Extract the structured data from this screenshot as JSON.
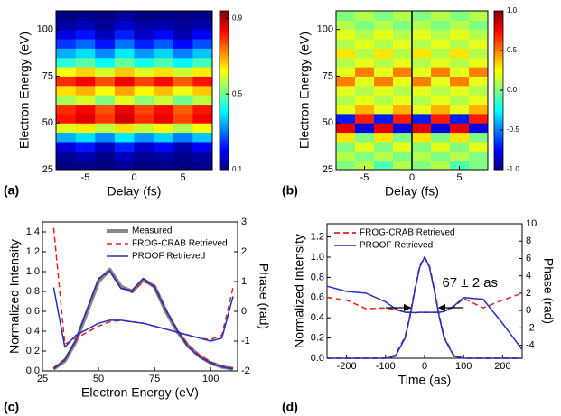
{
  "chart_data": [
    {
      "type": "heatmap",
      "panel_label": "(a)",
      "xlabel": "Delay (fs)",
      "ylabel": "Electron Energy (eV)",
      "xlim": [
        -8,
        8
      ],
      "ylim": [
        25,
        110
      ],
      "xticks": [
        -5,
        0,
        5
      ],
      "yticks": [
        25,
        50,
        75,
        100
      ],
      "colormap": "jet",
      "zlim": [
        0.1,
        0.94
      ],
      "colorbar_ticks": [
        0.1,
        0.5,
        0.9
      ],
      "x": [
        -7,
        -5,
        -3,
        -1,
        1,
        3,
        5,
        7
      ],
      "y": [
        27.5,
        32.5,
        37.5,
        42.5,
        47.5,
        52.5,
        57.5,
        62.5,
        67.5,
        72.5,
        77.5,
        82.5,
        87.5,
        92.5,
        97.5,
        102.5,
        107.5
      ],
      "z": [
        [
          0.1,
          0.11,
          0.1,
          0.12,
          0.1,
          0.11,
          0.1,
          0.11
        ],
        [
          0.12,
          0.14,
          0.11,
          0.15,
          0.12,
          0.13,
          0.11,
          0.13
        ],
        [
          0.18,
          0.22,
          0.15,
          0.23,
          0.16,
          0.21,
          0.14,
          0.2
        ],
        [
          0.35,
          0.39,
          0.32,
          0.4,
          0.33,
          0.38,
          0.31,
          0.37
        ],
        [
          0.6,
          0.64,
          0.57,
          0.65,
          0.58,
          0.63,
          0.56,
          0.62
        ],
        [
          0.82,
          0.86,
          0.79,
          0.87,
          0.8,
          0.85,
          0.78,
          0.84
        ],
        [
          0.8,
          0.84,
          0.77,
          0.85,
          0.78,
          0.83,
          0.76,
          0.82
        ],
        [
          0.55,
          0.59,
          0.52,
          0.6,
          0.53,
          0.58,
          0.51,
          0.57
        ],
        [
          0.65,
          0.69,
          0.62,
          0.7,
          0.63,
          0.68,
          0.61,
          0.67
        ],
        [
          0.8,
          0.84,
          0.77,
          0.85,
          0.78,
          0.83,
          0.76,
          0.82
        ],
        [
          0.62,
          0.66,
          0.59,
          0.67,
          0.6,
          0.65,
          0.58,
          0.64
        ],
        [
          0.45,
          0.49,
          0.42,
          0.5,
          0.43,
          0.48,
          0.41,
          0.47
        ],
        [
          0.35,
          0.39,
          0.32,
          0.4,
          0.33,
          0.38,
          0.31,
          0.37
        ],
        [
          0.25,
          0.29,
          0.22,
          0.3,
          0.23,
          0.28,
          0.21,
          0.27
        ],
        [
          0.18,
          0.22,
          0.15,
          0.23,
          0.16,
          0.21,
          0.14,
          0.2
        ],
        [
          0.13,
          0.15,
          0.12,
          0.16,
          0.13,
          0.14,
          0.12,
          0.14
        ],
        [
          0.1,
          0.11,
          0.1,
          0.12,
          0.1,
          0.11,
          0.1,
          0.11
        ]
      ]
    },
    {
      "type": "heatmap",
      "panel_label": "(b)",
      "xlabel": "Delay (fs)",
      "ylabel": "Electron Energy (eV)",
      "xlim": [
        -8,
        8
      ],
      "ylim": [
        25,
        110
      ],
      "xticks": [
        -5,
        0,
        5
      ],
      "yticks": [
        25,
        50,
        75,
        100
      ],
      "colormap": "jet",
      "zlim": [
        -1,
        1
      ],
      "colorbar_ticks": [
        {
          "value": -1,
          "label": "-1.0"
        },
        {
          "value": -0.5,
          "label": "-0.5"
        },
        {
          "value": 0,
          "label": "0.0"
        },
        {
          "value": 0.5,
          "label": "0.5"
        },
        {
          "value": 1,
          "label": "1.0"
        }
      ],
      "x": [
        -7,
        -5,
        -3,
        -1,
        1,
        3,
        5,
        7
      ],
      "y": [
        27.5,
        32.5,
        37.5,
        42.5,
        47.5,
        52.5,
        57.5,
        62.5,
        67.5,
        72.5,
        77.5,
        82.5,
        87.5,
        92.5,
        97.5,
        102.5,
        107.5
      ],
      "z": [
        [
          0,
          0.1,
          -0.1,
          0.1,
          0,
          0.1,
          -0.1,
          0
        ],
        [
          0.1,
          0,
          0.1,
          0,
          0.1,
          0,
          0.1,
          0
        ],
        [
          0,
          0.2,
          0,
          0.2,
          0,
          0.2,
          0,
          0.2
        ],
        [
          0.3,
          0,
          0.3,
          0,
          0.3,
          0,
          0.3,
          0
        ],
        [
          0.8,
          -0.8,
          0.8,
          -0.8,
          0.8,
          -0.8,
          0.8,
          -0.8
        ],
        [
          -0.7,
          0.7,
          -0.7,
          0.7,
          -0.7,
          0.7,
          -0.7,
          0.7
        ],
        [
          0.2,
          0.4,
          0.2,
          0.4,
          0.2,
          0.4,
          0.2,
          0.4
        ],
        [
          0.1,
          0.2,
          0.1,
          0.2,
          0.1,
          0.2,
          0.1,
          0.2
        ],
        [
          0.2,
          0.1,
          0.2,
          0.1,
          0.2,
          0.1,
          0.2,
          0.1
        ],
        [
          0.5,
          0.2,
          0.5,
          0.2,
          0.5,
          0.2,
          0.5,
          0.2
        ],
        [
          0.2,
          0.5,
          0.2,
          0.5,
          0.2,
          0.5,
          0.2,
          0.5
        ],
        [
          0.1,
          0.2,
          0.1,
          0.2,
          0.1,
          0.2,
          0.1,
          0.2
        ],
        [
          0.3,
          0.1,
          0.3,
          0.1,
          0.3,
          0.1,
          0.3,
          0.1
        ],
        [
          0.1,
          0.2,
          0.1,
          0.2,
          0.1,
          0.2,
          0.1,
          0.2
        ],
        [
          0.2,
          0.1,
          0.2,
          0.1,
          0.2,
          0.1,
          0.2,
          0.1
        ],
        [
          0.1,
          0,
          0.1,
          0,
          0.1,
          0,
          0.1,
          0
        ],
        [
          0,
          0.1,
          0,
          0.1,
          0,
          0.1,
          0,
          0.1
        ]
      ]
    },
    {
      "type": "line",
      "panel_label": "(c)",
      "xlabel": "Electron Energy (eV)",
      "ylabel": "Normalized Intensity",
      "y2label": "Phase (rad)",
      "xlim": [
        25,
        112
      ],
      "ylim": [
        0,
        1.5
      ],
      "y2lim": [
        -2,
        3
      ],
      "xticks": [
        25,
        50,
        75,
        100
      ],
      "yticks": [
        {
          "value": 0,
          "label": "0.0"
        },
        {
          "value": 0.2,
          "label": "0.2"
        },
        {
          "value": 0.4,
          "label": "0.4"
        },
        {
          "value": 0.6,
          "label": "0.6"
        },
        {
          "value": 0.8,
          "label": "0.8"
        },
        {
          "value": 1,
          "label": "1.0"
        },
        {
          "value": 1.2,
          "label": "1.2"
        },
        {
          "value": 1.4,
          "label": "1.4"
        }
      ],
      "y2ticks": [
        -2,
        -1,
        0,
        1,
        2,
        3
      ],
      "legend": "upper right",
      "x": [
        30,
        35,
        40,
        45,
        50,
        55,
        60,
        65,
        70,
        75,
        80,
        85,
        90,
        95,
        100,
        105,
        110
      ],
      "series": [
        {
          "name": "Measured",
          "color": "#888888",
          "width": 4,
          "dash": "none",
          "values": [
            0.02,
            0.1,
            0.3,
            0.6,
            0.9,
            1.02,
            0.85,
            0.8,
            0.92,
            0.85,
            0.6,
            0.4,
            0.25,
            0.15,
            0.08,
            0.04,
            0.02
          ]
        },
        {
          "name": "FROG-CRAB Retrieved",
          "color": "#e02020",
          "width": 1.5,
          "dash": "6,4",
          "values": [
            0.03,
            0.12,
            0.32,
            0.62,
            0.92,
            1.0,
            0.84,
            0.79,
            0.9,
            0.86,
            0.62,
            0.42,
            0.26,
            0.16,
            0.09,
            0.05,
            0.03
          ]
        },
        {
          "name": "PROOF Retrieved",
          "color": "#2030c0",
          "width": 1.5,
          "dash": "none",
          "values": [
            0.02,
            0.11,
            0.31,
            0.63,
            0.93,
            1.01,
            0.83,
            0.81,
            0.93,
            0.84,
            0.61,
            0.41,
            0.24,
            0.14,
            0.08,
            0.04,
            0.02
          ]
        },
        {
          "color": "#e02020",
          "width": 1.5,
          "dash": "6,4",
          "axis": "y2",
          "values": [
            2.8,
            -1.1,
            -0.9,
            -0.7,
            -0.5,
            -0.35,
            -0.3,
            -0.35,
            -0.4,
            -0.5,
            -0.6,
            -0.7,
            -0.8,
            -0.9,
            -0.95,
            -0.8,
            0.8
          ]
        },
        {
          "color": "#2030c0",
          "width": 1.5,
          "dash": "none",
          "axis": "y2",
          "values": [
            0.8,
            -1.2,
            -0.8,
            -0.6,
            -0.4,
            -0.3,
            -0.3,
            -0.35,
            -0.4,
            -0.5,
            -0.6,
            -0.7,
            -0.8,
            -0.9,
            -1.0,
            -0.9,
            0.5
          ]
        }
      ]
    },
    {
      "type": "line",
      "panel_label": "(d)",
      "xlabel": "Time (as)",
      "ylabel": "Normalized Intensity",
      "y2label": "Phase (rad)",
      "xlim": [
        -250,
        250
      ],
      "ylim": [
        0,
        1.33
      ],
      "y2lim": [
        -5.5,
        10
      ],
      "xticks": [
        -200,
        -100,
        0,
        100,
        200
      ],
      "yticks": [
        {
          "value": 0,
          "label": "0.0"
        },
        {
          "value": 0.2,
          "label": "0.2"
        },
        {
          "value": 0.4,
          "label": "0.4"
        },
        {
          "value": 0.6,
          "label": "0.6"
        },
        {
          "value": 0.8,
          "label": "0.8"
        },
        {
          "value": 1,
          "label": "1.0"
        },
        {
          "value": 1.2,
          "label": "1.2"
        }
      ],
      "y2ticks": [
        -4,
        -2,
        0,
        2,
        4,
        6,
        8,
        10
      ],
      "legend": "upper left",
      "annotation": "67 ± 2 as",
      "x": [
        -250,
        -200,
        -150,
        -100,
        -75,
        -50,
        -37.5,
        -25,
        -12.5,
        0,
        12.5,
        25,
        37.5,
        50,
        75,
        100,
        150,
        200,
        250
      ],
      "series": [
        {
          "name": "FROG-CRAB Retrieved",
          "color": "#e02020",
          "width": 1.8,
          "dash": "6,4",
          "values": [
            0,
            0,
            0,
            0,
            0.03,
            0.21,
            0.42,
            0.68,
            0.91,
            1,
            0.91,
            0.68,
            0.42,
            0.21,
            0.03,
            0,
            0,
            0,
            0
          ]
        },
        {
          "name": "PROOF Retrieved",
          "color": "#2030c0",
          "width": 1.5,
          "dash": "none",
          "values": [
            0,
            0,
            0,
            0,
            0.02,
            0.2,
            0.41,
            0.67,
            0.9,
            1,
            0.9,
            0.67,
            0.41,
            0.2,
            0.02,
            0,
            0,
            0,
            0
          ]
        },
        {
          "color": "#e02020",
          "width": 1.5,
          "dash": "6,4",
          "axis": "y2",
          "values": [
            1.5,
            1.2,
            0.2,
            0.3,
            0.1,
            -0.2,
            -0.2,
            -0.25,
            -0.2,
            -0.2,
            -0.2,
            -0.2,
            -0.2,
            -0.1,
            0.4,
            1.4,
            0.3,
            1.2,
            2.0
          ]
        },
        {
          "color": "#2030c0",
          "width": 1.5,
          "dash": "none",
          "axis": "y2",
          "values": [
            2.8,
            2.2,
            2.0,
            1.0,
            0.2,
            -0.2,
            -0.2,
            -0.25,
            -0.2,
            -0.2,
            -0.2,
            -0.2,
            -0.2,
            -0.1,
            0.5,
            1.5,
            1.3,
            -1.5,
            -4.5
          ]
        }
      ]
    }
  ]
}
